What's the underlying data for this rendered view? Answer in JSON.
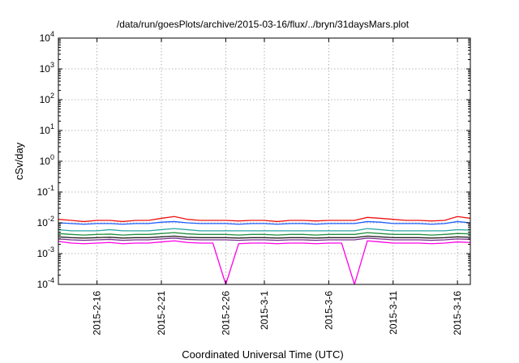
{
  "chart_data": {
    "type": "line",
    "title": "/data/run/goesPlots/archive/2015-03-16/flux/../bryn/31daysMars.plot",
    "xlabel": "Coordinated Universal Time (UTC)",
    "ylabel": "cSv/day",
    "yscale": "log",
    "ylim": [
      0.0001,
      10000
    ],
    "xlim": [
      "2015-02-13",
      "2015-03-17"
    ],
    "grid": true,
    "ytick_labels": [
      {
        "base": "10",
        "exp": "-4",
        "value": 0.0001
      },
      {
        "base": "10",
        "exp": "-3",
        "value": 0.001
      },
      {
        "base": "10",
        "exp": "-2",
        "value": 0.01
      },
      {
        "base": "10",
        "exp": "-1",
        "value": 0.1
      },
      {
        "base": "10",
        "exp": "0",
        "value": 1
      },
      {
        "base": "10",
        "exp": "1",
        "value": 10
      },
      {
        "base": "10",
        "exp": "2",
        "value": 100
      },
      {
        "base": "10",
        "exp": "3",
        "value": 1000
      },
      {
        "base": "10",
        "exp": "4",
        "value": 10000
      }
    ],
    "xtick_labels": [
      {
        "label": "2015-2-16",
        "date": "2015-02-16"
      },
      {
        "label": "2015-2-21",
        "date": "2015-02-21"
      },
      {
        "label": "2015-2-26",
        "date": "2015-02-26"
      },
      {
        "label": "2015-3-1",
        "date": "2015-03-01"
      },
      {
        "label": "2015-3-6",
        "date": "2015-03-06"
      },
      {
        "label": "2015-3-11",
        "date": "2015-03-11"
      },
      {
        "label": "2015-3-16",
        "date": "2015-03-16"
      }
    ],
    "series": [
      {
        "color": "#ee1111",
        "x": [
          "2015-02-13",
          "2015-02-14",
          "2015-02-15",
          "2015-02-16",
          "2015-02-17",
          "2015-02-18",
          "2015-02-19",
          "2015-02-20",
          "2015-02-21",
          "2015-02-22",
          "2015-02-23",
          "2015-02-24",
          "2015-02-25",
          "2015-02-26",
          "2015-02-27",
          "2015-02-28",
          "2015-03-01",
          "2015-03-02",
          "2015-03-03",
          "2015-03-04",
          "2015-03-05",
          "2015-03-06",
          "2015-03-07",
          "2015-03-08",
          "2015-03-09",
          "2015-03-10",
          "2015-03-11",
          "2015-03-12",
          "2015-03-13",
          "2015-03-14",
          "2015-03-15",
          "2015-03-16",
          "2015-03-17"
        ],
        "y": [
          0.013,
          0.012,
          0.011,
          0.012,
          0.012,
          0.011,
          0.012,
          0.012,
          0.014,
          0.016,
          0.013,
          0.012,
          0.012,
          0.012,
          0.0115,
          0.012,
          0.012,
          0.011,
          0.012,
          0.012,
          0.0115,
          0.012,
          0.012,
          0.012,
          0.015,
          0.014,
          0.013,
          0.012,
          0.012,
          0.0115,
          0.012,
          0.016,
          0.014
        ]
      },
      {
        "color": "#1f5fff",
        "x": [
          "2015-02-13",
          "2015-02-14",
          "2015-02-15",
          "2015-02-16",
          "2015-02-17",
          "2015-02-18",
          "2015-02-19",
          "2015-02-20",
          "2015-02-21",
          "2015-02-22",
          "2015-02-23",
          "2015-02-24",
          "2015-02-25",
          "2015-02-26",
          "2015-02-27",
          "2015-02-28",
          "2015-03-01",
          "2015-03-02",
          "2015-03-03",
          "2015-03-04",
          "2015-03-05",
          "2015-03-06",
          "2015-03-07",
          "2015-03-08",
          "2015-03-09",
          "2015-03-10",
          "2015-03-11",
          "2015-03-12",
          "2015-03-13",
          "2015-03-14",
          "2015-03-15",
          "2015-03-16",
          "2015-03-17"
        ],
        "y": [
          0.01,
          0.0095,
          0.009,
          0.0095,
          0.0095,
          0.009,
          0.0095,
          0.0095,
          0.0105,
          0.011,
          0.01,
          0.0095,
          0.0095,
          0.0095,
          0.009,
          0.0095,
          0.0095,
          0.009,
          0.0095,
          0.0095,
          0.009,
          0.0095,
          0.0095,
          0.0095,
          0.011,
          0.0105,
          0.0095,
          0.0095,
          0.0095,
          0.009,
          0.0095,
          0.011,
          0.01
        ]
      },
      {
        "color": "#2aa5a5",
        "x": [
          "2015-02-13",
          "2015-02-14",
          "2015-02-15",
          "2015-02-16",
          "2015-02-17",
          "2015-02-18",
          "2015-02-19",
          "2015-02-20",
          "2015-02-21",
          "2015-02-22",
          "2015-02-23",
          "2015-02-24",
          "2015-02-25",
          "2015-02-26",
          "2015-02-27",
          "2015-02-28",
          "2015-03-01",
          "2015-03-02",
          "2015-03-03",
          "2015-03-04",
          "2015-03-05",
          "2015-03-06",
          "2015-03-07",
          "2015-03-08",
          "2015-03-09",
          "2015-03-10",
          "2015-03-11",
          "2015-03-12",
          "2015-03-13",
          "2015-03-14",
          "2015-03-15",
          "2015-03-16",
          "2015-03-17"
        ],
        "y": [
          0.006,
          0.0055,
          0.0055,
          0.0055,
          0.006,
          0.0055,
          0.0055,
          0.0055,
          0.006,
          0.0065,
          0.006,
          0.0055,
          0.0055,
          0.0055,
          0.0055,
          0.0055,
          0.0055,
          0.0055,
          0.0055,
          0.0055,
          0.0055,
          0.0055,
          0.0055,
          0.0055,
          0.0065,
          0.006,
          0.0055,
          0.0055,
          0.0055,
          0.0055,
          0.0055,
          0.006,
          0.0058
        ]
      },
      {
        "color": "#1f8f3f",
        "x": [
          "2015-02-13",
          "2015-02-14",
          "2015-02-15",
          "2015-02-16",
          "2015-02-17",
          "2015-02-18",
          "2015-02-19",
          "2015-02-20",
          "2015-02-21",
          "2015-02-22",
          "2015-02-23",
          "2015-02-24",
          "2015-02-25",
          "2015-02-26",
          "2015-02-27",
          "2015-02-28",
          "2015-03-01",
          "2015-03-02",
          "2015-03-03",
          "2015-03-04",
          "2015-03-05",
          "2015-03-06",
          "2015-03-07",
          "2015-03-08",
          "2015-03-09",
          "2015-03-10",
          "2015-03-11",
          "2015-03-12",
          "2015-03-13",
          "2015-03-14",
          "2015-03-15",
          "2015-03-16",
          "2015-03-17"
        ],
        "y": [
          0.0045,
          0.0042,
          0.004,
          0.0042,
          0.0043,
          0.004,
          0.0042,
          0.0042,
          0.0045,
          0.0048,
          0.0044,
          0.0042,
          0.0042,
          0.0042,
          0.004,
          0.0042,
          0.0042,
          0.004,
          0.0042,
          0.0042,
          0.004,
          0.0042,
          0.0042,
          0.0042,
          0.0048,
          0.0045,
          0.0042,
          0.0042,
          0.0042,
          0.004,
          0.0042,
          0.0045,
          0.0044
        ]
      },
      {
        "color": "#222222",
        "x": [
          "2015-02-13",
          "2015-02-14",
          "2015-02-15",
          "2015-02-16",
          "2015-02-17",
          "2015-02-18",
          "2015-02-19",
          "2015-02-20",
          "2015-02-21",
          "2015-02-22",
          "2015-02-23",
          "2015-02-24",
          "2015-02-25",
          "2015-02-26",
          "2015-02-27",
          "2015-02-28",
          "2015-03-01",
          "2015-03-02",
          "2015-03-03",
          "2015-03-04",
          "2015-03-05",
          "2015-03-06",
          "2015-03-07",
          "2015-03-08",
          "2015-03-09",
          "2015-03-10",
          "2015-03-11",
          "2015-03-12",
          "2015-03-13",
          "2015-03-14",
          "2015-03-15",
          "2015-03-16",
          "2015-03-17"
        ],
        "y": [
          0.0035,
          0.0033,
          0.0032,
          0.0033,
          0.0034,
          0.0032,
          0.0033,
          0.0033,
          0.0035,
          0.0037,
          0.0034,
          0.0033,
          0.0033,
          0.0033,
          0.0032,
          0.0033,
          0.0033,
          0.0032,
          0.0033,
          0.0033,
          0.0032,
          0.0033,
          0.0033,
          0.0033,
          0.0037,
          0.0035,
          0.0033,
          0.0033,
          0.0033,
          0.0032,
          0.0033,
          0.0035,
          0.0034
        ]
      },
      {
        "color": "#7a2f8f",
        "x": [
          "2015-02-13",
          "2015-02-14",
          "2015-02-15",
          "2015-02-16",
          "2015-02-17",
          "2015-02-18",
          "2015-02-19",
          "2015-02-20",
          "2015-02-21",
          "2015-02-22",
          "2015-02-23",
          "2015-02-24",
          "2015-02-25",
          "2015-02-26",
          "2015-02-27",
          "2015-02-28",
          "2015-03-01",
          "2015-03-02",
          "2015-03-03",
          "2015-03-04",
          "2015-03-05",
          "2015-03-06",
          "2015-03-07",
          "2015-03-08",
          "2015-03-09",
          "2015-03-10",
          "2015-03-11",
          "2015-03-12",
          "2015-03-13",
          "2015-03-14",
          "2015-03-15",
          "2015-03-16",
          "2015-03-17"
        ],
        "y": [
          0.003,
          0.0028,
          0.0027,
          0.0028,
          0.0029,
          0.0027,
          0.0028,
          0.0028,
          0.003,
          0.0032,
          0.0029,
          0.0028,
          0.0028,
          0.0028,
          0.0027,
          0.0028,
          0.0028,
          0.0027,
          0.0028,
          0.0028,
          0.0027,
          0.0028,
          0.0028,
          0.0028,
          0.0032,
          0.003,
          0.0028,
          0.0028,
          0.0028,
          0.0027,
          0.0028,
          0.003,
          0.0029
        ]
      },
      {
        "color": "#ff00e6",
        "x": [
          "2015-02-13",
          "2015-02-14",
          "2015-02-15",
          "2015-02-16",
          "2015-02-17",
          "2015-02-18",
          "2015-02-19",
          "2015-02-20",
          "2015-02-21",
          "2015-02-22",
          "2015-02-23",
          "2015-02-24",
          "2015-02-25",
          "2015-02-26",
          "2015-02-27",
          "2015-02-28",
          "2015-03-01",
          "2015-03-02",
          "2015-03-03",
          "2015-03-04",
          "2015-03-05",
          "2015-03-06",
          "2015-03-07",
          "2015-03-08",
          "2015-03-09",
          "2015-03-10",
          "2015-03-11",
          "2015-03-12",
          "2015-03-13",
          "2015-03-14",
          "2015-03-15",
          "2015-03-16",
          "2015-03-17"
        ],
        "y": [
          0.0025,
          0.0022,
          0.0021,
          0.0022,
          0.0023,
          0.0021,
          0.0022,
          0.0022,
          0.0024,
          0.0026,
          0.0023,
          0.0022,
          0.0022,
          0.0001,
          0.0021,
          0.0022,
          0.0022,
          0.0021,
          0.0022,
          0.0022,
          0.0021,
          0.0022,
          0.0022,
          0.0001,
          0.0026,
          0.0024,
          0.0022,
          0.0022,
          0.0022,
          0.0021,
          0.0022,
          0.0024,
          0.0023
        ]
      }
    ]
  }
}
